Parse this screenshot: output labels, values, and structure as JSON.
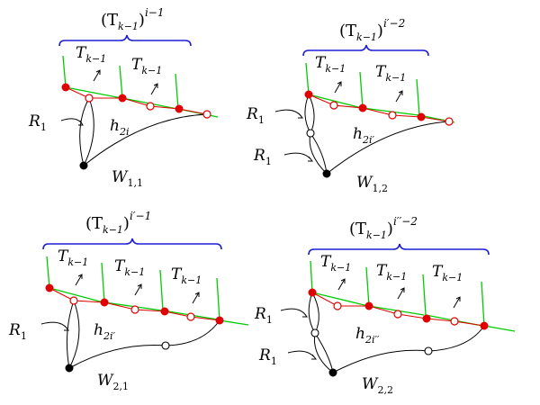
{
  "panels": [
    {
      "id": "W11",
      "brace_base": "(T",
      "brace_sub": "k−1",
      "brace_close": ")",
      "brace_sup": "i−1",
      "t_base": "T",
      "t_sub": "k−1",
      "r_base": "R",
      "r_sub": "1",
      "h_base": "h",
      "h_sub": "2i",
      "w_base": "W",
      "w_sub": "1,1"
    },
    {
      "id": "W12",
      "brace_base": "(T",
      "brace_sub": "k−1",
      "brace_close": ")",
      "brace_sup": "i′−2",
      "t_base": "T",
      "t_sub": "k−1",
      "r_base": "R",
      "r_sub": "1",
      "h_base": "h",
      "h_sub": "2i′",
      "w_base": "W",
      "w_sub": "1,2"
    },
    {
      "id": "W21",
      "brace_base": "(T",
      "brace_sub": "k−1",
      "brace_close": ")",
      "brace_sup": "i′−1",
      "t_base": "T",
      "t_sub": "k−1",
      "r_base": "R",
      "r_sub": "1",
      "h_base": "h",
      "h_sub": "2i′",
      "w_base": "W",
      "w_sub": "2,1"
    },
    {
      "id": "W22",
      "brace_base": "(T",
      "brace_sub": "k−1",
      "brace_close": ")",
      "brace_sup": "i′′−2",
      "t_base": "T",
      "t_sub": "k−1",
      "r_base": "R",
      "r_sub": "1",
      "h_base": "h",
      "h_sub": "2i′′",
      "w_base": "W",
      "w_sub": "2,2"
    }
  ],
  "colors": {
    "brace": "#1f1fd6",
    "tree_edge": "#00cc00",
    "path_edge": "#e00000",
    "vertex_red": "#e00000",
    "vertex_black": "#000000"
  }
}
